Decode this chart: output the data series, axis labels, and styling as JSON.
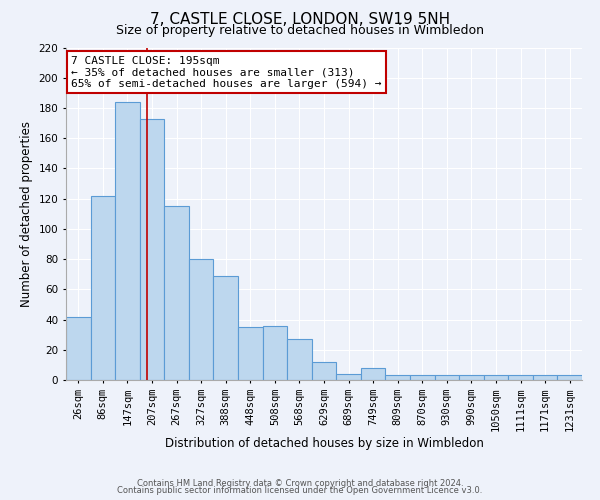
{
  "title": "7, CASTLE CLOSE, LONDON, SW19 5NH",
  "subtitle": "Size of property relative to detached houses in Wimbledon",
  "xlabel": "Distribution of detached houses by size in Wimbledon",
  "ylabel": "Number of detached properties",
  "bar_labels": [
    "26sqm",
    "86sqm",
    "147sqm",
    "207sqm",
    "267sqm",
    "327sqm",
    "388sqm",
    "448sqm",
    "508sqm",
    "568sqm",
    "629sqm",
    "689sqm",
    "749sqm",
    "809sqm",
    "870sqm",
    "930sqm",
    "990sqm",
    "1050sqm",
    "1111sqm",
    "1171sqm",
    "1231sqm"
  ],
  "bar_values": [
    42,
    122,
    184,
    173,
    115,
    80,
    69,
    35,
    36,
    27,
    12,
    4,
    8,
    3,
    3,
    3,
    3,
    3,
    3,
    3,
    3
  ],
  "bar_color": "#bdd7ee",
  "bar_edge_color": "#5b9bd5",
  "bar_linewidth": 0.8,
  "property_line_x": 2.8,
  "property_line_color": "#c00000",
  "annotation_title": "7 CASTLE CLOSE: 195sqm",
  "annotation_line1": "← 35% of detached houses are smaller (313)",
  "annotation_line2": "65% of semi-detached houses are larger (594) →",
  "annotation_box_color": "#c00000",
  "ylim": [
    0,
    220
  ],
  "yticks": [
    0,
    20,
    40,
    60,
    80,
    100,
    120,
    140,
    160,
    180,
    200,
    220
  ],
  "footer1": "Contains HM Land Registry data © Crown copyright and database right 2024.",
  "footer2": "Contains public sector information licensed under the Open Government Licence v3.0.",
  "background_color": "#eef2fa",
  "grid_color": "#ffffff",
  "title_fontsize": 11,
  "subtitle_fontsize": 9,
  "xlabel_fontsize": 8.5,
  "ylabel_fontsize": 8.5,
  "tick_fontsize": 7.5,
  "annotation_fontsize": 8,
  "footer_fontsize": 6
}
